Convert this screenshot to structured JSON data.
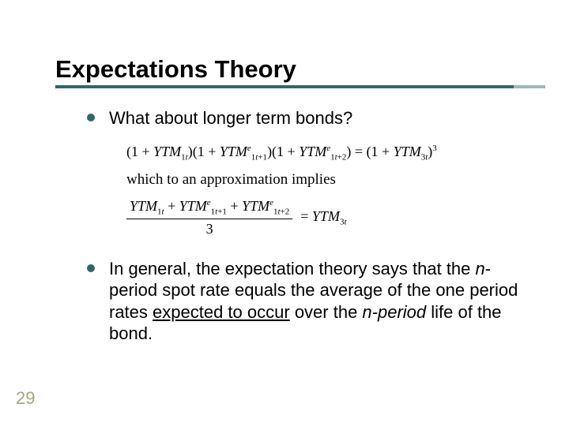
{
  "title": "Expectations Theory",
  "bullets": {
    "b1": "What about longer term bonds?",
    "b2_parts": {
      "p1": "In general, the expectation theory says that the ",
      "p2": "n",
      "p3": "-period spot rate equals the average of the one period rates ",
      "p4": "expected to occur",
      "p5": " over the ",
      "p6": "n-period",
      "p7": " life of the bond."
    }
  },
  "formula": {
    "approx": "which to an approximation implies",
    "denom": "3"
  },
  "page_number": "29",
  "colors": {
    "accent": "#336666",
    "accent_light": "#9db8b8",
    "page_num": "#a7a77a",
    "text": "#000000",
    "background": "#ffffff"
  }
}
